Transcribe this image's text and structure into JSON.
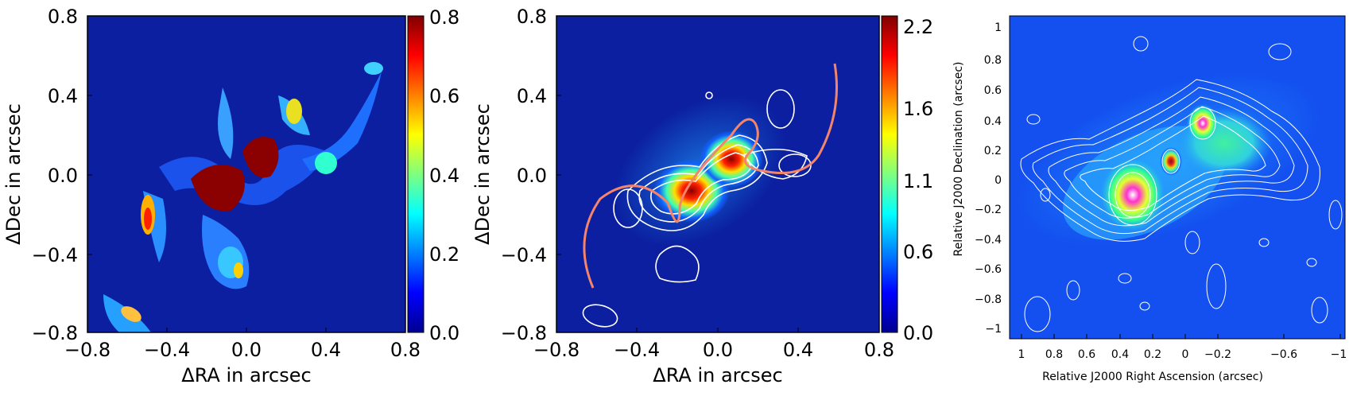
{
  "panels": [
    {
      "xlabel": "ΔRA in arcsec",
      "ylabel": "ΔDec in arcsec",
      "xticks": [
        "−0.8",
        "−0.4",
        "0.0",
        "0.4",
        "0.8"
      ],
      "yticks": [
        "0.8",
        "0.4",
        "0.0",
        "−0.4",
        "−0.8"
      ],
      "colorbar_ticks": [
        "0.8",
        "0.6",
        "0.4",
        "0.2",
        "0.0"
      ]
    },
    {
      "xlabel": "ΔRA in arcsec",
      "ylabel": "ΔDec in arcsec",
      "xticks": [
        "−0.8",
        "−0.4",
        "0.0",
        "0.4",
        "0.8"
      ],
      "yticks": [
        "0.8",
        "0.4",
        "0.0",
        "−0.4",
        "−0.8"
      ],
      "colorbar_ticks": [
        "2.2",
        "1.6",
        "1.1",
        "0.6",
        "0.0"
      ]
    },
    {
      "xlabel": "Relative J2000 Right Ascension (arcsec)",
      "ylabel": "Relative J2000 Declination (arcsec)",
      "xticks": [
        "1",
        "0.8",
        "0.6",
        "0.4",
        "0.2",
        "0",
        "−0.2",
        "−0.6",
        "−1"
      ],
      "yticks": [
        "1",
        "0.8",
        "0.6",
        "0.4",
        "0.2",
        "0",
        "−0.2",
        "−0.4",
        "−0.6",
        "−0.8",
        "−1"
      ]
    }
  ],
  "colors": {
    "background_blue": "#0b1fa0",
    "contour": "#ffffff",
    "curve": "#f4846a"
  }
}
